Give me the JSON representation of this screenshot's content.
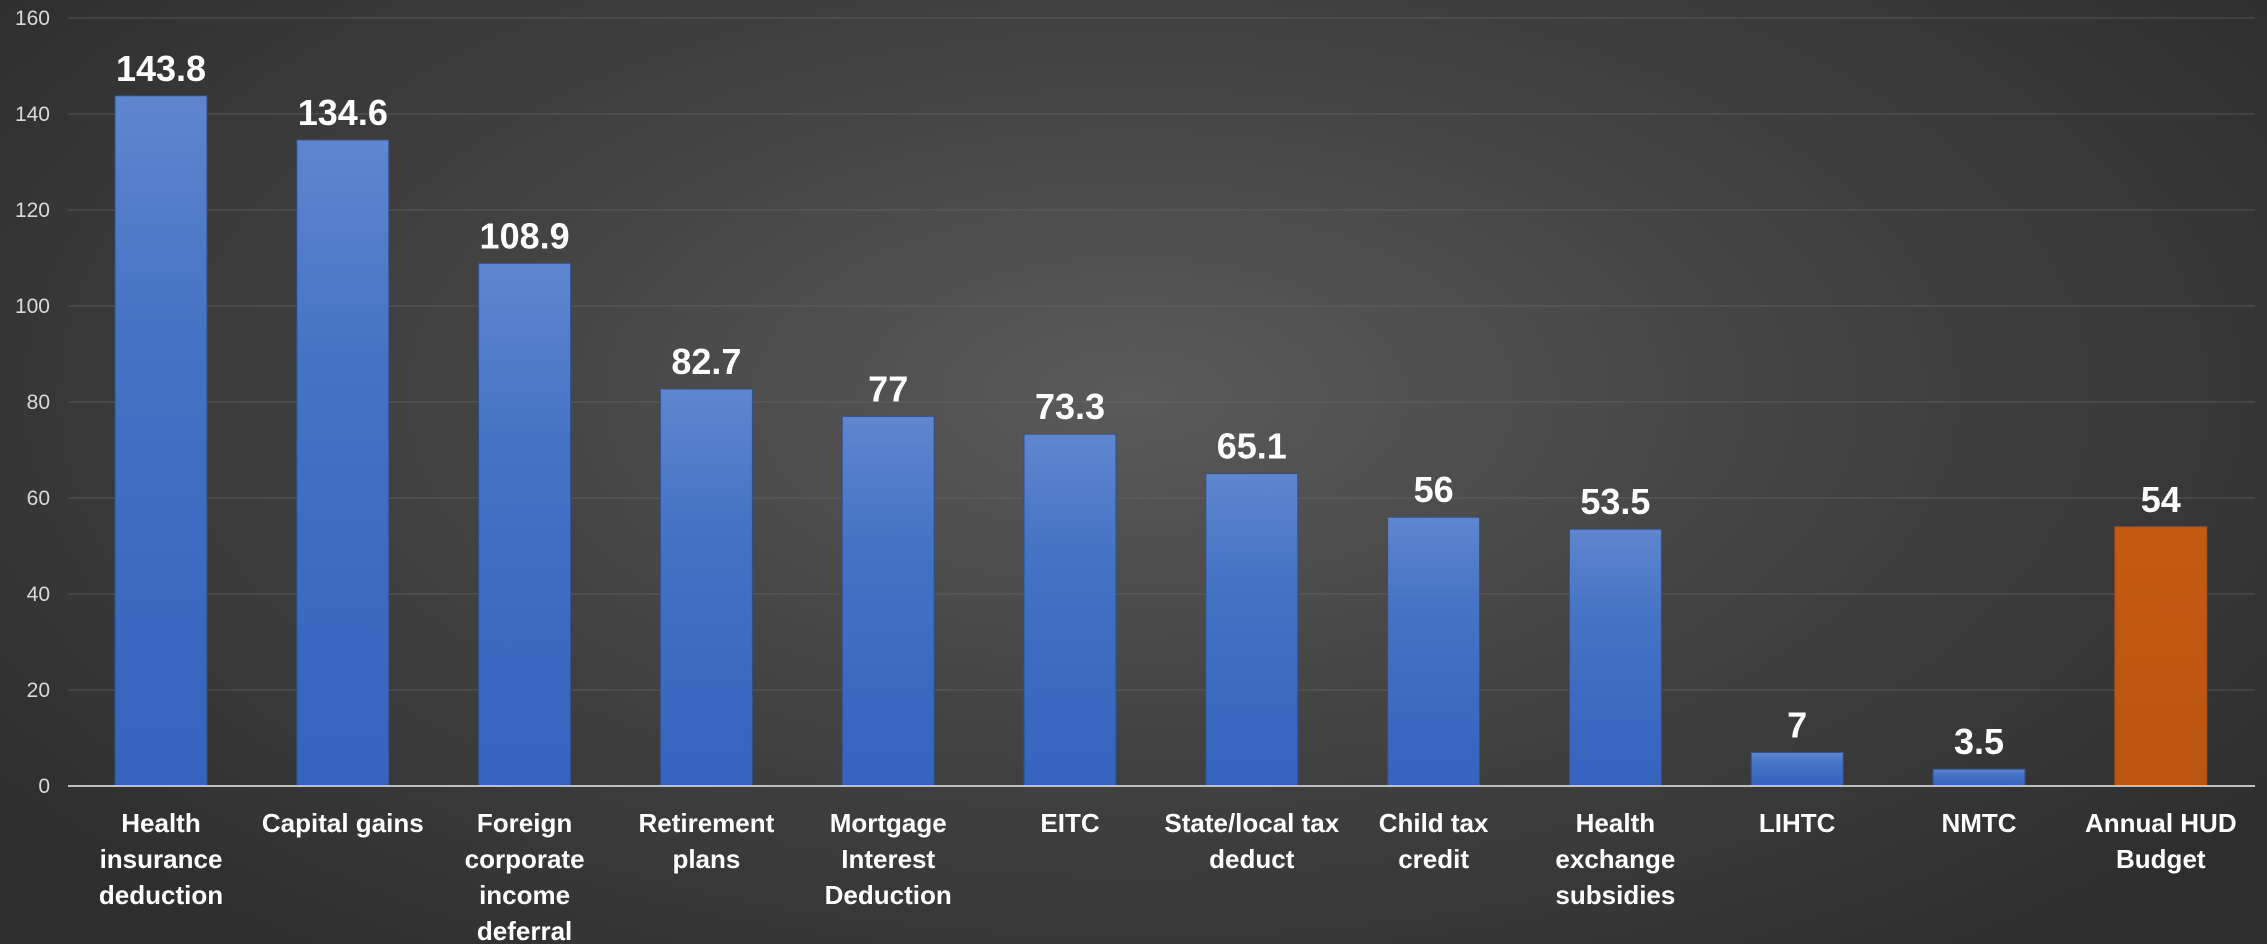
{
  "chart_data": {
    "type": "bar",
    "title": "",
    "xlabel": "",
    "ylabel": "",
    "ylim": [
      0,
      160
    ],
    "yticks": [
      0,
      20,
      40,
      60,
      80,
      100,
      120,
      140,
      160
    ],
    "grid": true,
    "legend": "none",
    "categories": [
      "Health insurance deduction",
      "Capital gains",
      "Foreign corporate income deferral",
      "Retirement plans",
      "Mortgage Interest Deduction",
      "EITC",
      "State/local tax deduct",
      "Child tax credit",
      "Health exchange subsidies",
      "LIHTC",
      "NMTC",
      "Annual HUD Budget"
    ],
    "category_lines": [
      [
        "Health",
        "insurance",
        "deduction"
      ],
      [
        "Capital gains"
      ],
      [
        "Foreign",
        "corporate",
        "income",
        "deferral"
      ],
      [
        "Retirement",
        "plans"
      ],
      [
        "Mortgage",
        "Interest",
        "Deduction"
      ],
      [
        "EITC"
      ],
      [
        "State/local tax",
        "deduct"
      ],
      [
        "Child tax",
        "credit"
      ],
      [
        "Health",
        "exchange",
        "subsidies"
      ],
      [
        "LIHTC"
      ],
      [
        "NMTC"
      ],
      [
        "Annual HUD",
        "Budget"
      ]
    ],
    "values": [
      143.8,
      134.6,
      108.9,
      82.7,
      77,
      73.3,
      65.1,
      56,
      53.5,
      7,
      3.5,
      54
    ],
    "value_labels": [
      "143.8",
      "134.6",
      "108.9",
      "82.7",
      "77",
      "73.3",
      "65.1",
      "56",
      "53.5",
      "7",
      "3.5",
      "54"
    ],
    "colors": {
      "default": "#4472c4",
      "highlight": "#c55a11"
    },
    "highlight_index": 11
  }
}
